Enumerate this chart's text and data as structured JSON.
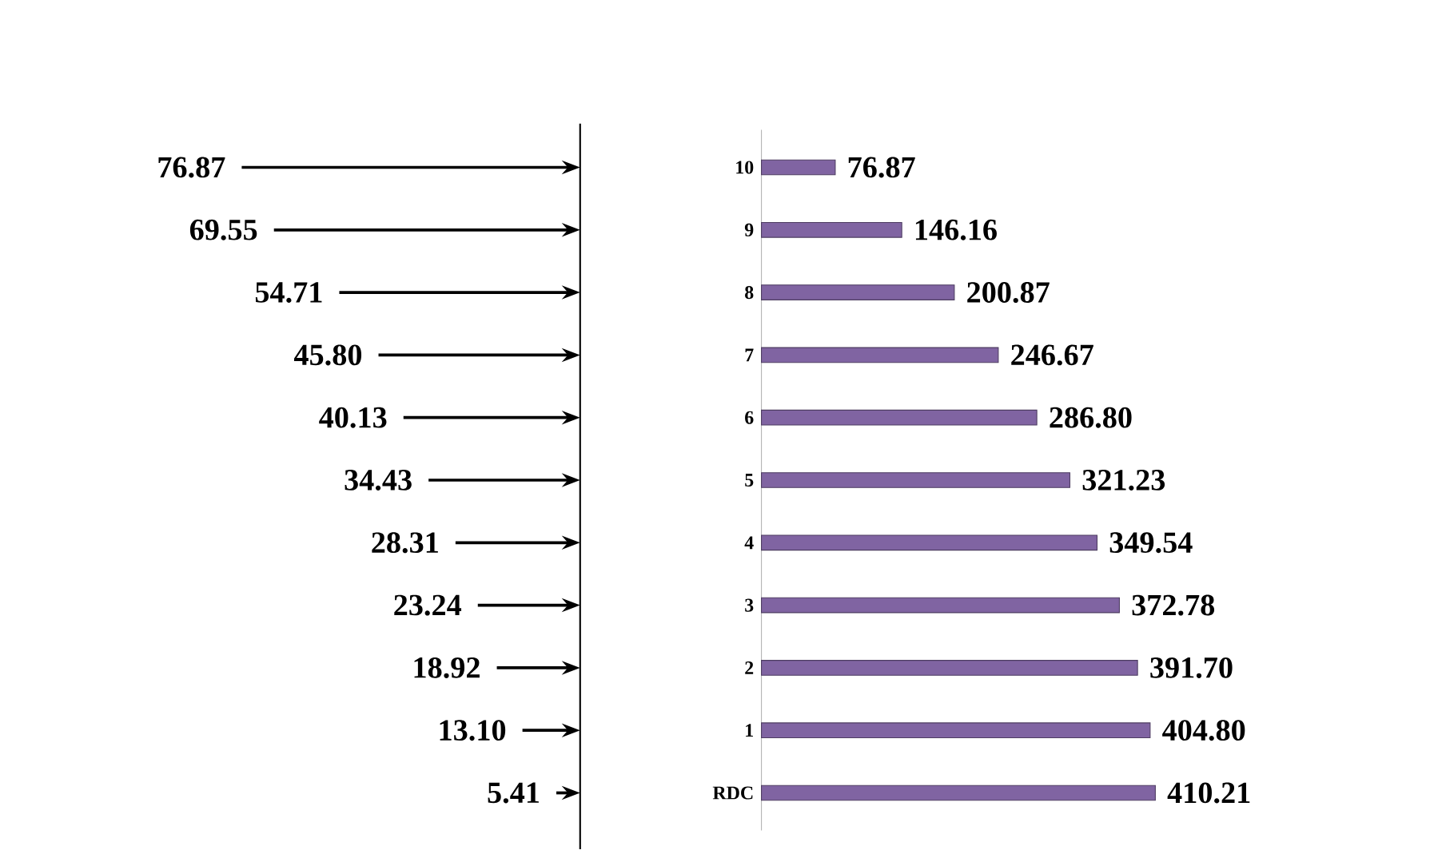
{
  "chart_data": [
    {
      "type": "other",
      "categories": [
        null,
        null,
        null,
        null,
        null,
        null,
        null,
        null,
        null,
        null,
        null
      ],
      "values": [
        76.87,
        69.55,
        54.71,
        45.8,
        40.13,
        34.43,
        28.31,
        23.24,
        18.92,
        13.1,
        5.41
      ],
      "value_labels": [
        "76.87",
        "69.55",
        "54.71",
        "45.80",
        "40.13",
        "34.43",
        "28.31",
        "23.24",
        "18.92",
        "13.10",
        "5.41"
      ],
      "color": "#000000"
    },
    {
      "type": "bar",
      "orientation": "horizontal",
      "categories": [
        "10",
        "9",
        "8",
        "7",
        "6",
        "5",
        "4",
        "3",
        "2",
        "1",
        "RDC"
      ],
      "values": [
        76.87,
        146.16,
        200.87,
        246.67,
        286.8,
        321.23,
        349.54,
        372.78,
        391.7,
        404.8,
        410.21
      ],
      "value_labels": [
        "76.87",
        "146.16",
        "200.87",
        "246.67",
        "286.80",
        "321.23",
        "349.54",
        "372.78",
        "391.70",
        "404.80",
        "410.21"
      ],
      "color": "#8064a2"
    }
  ]
}
